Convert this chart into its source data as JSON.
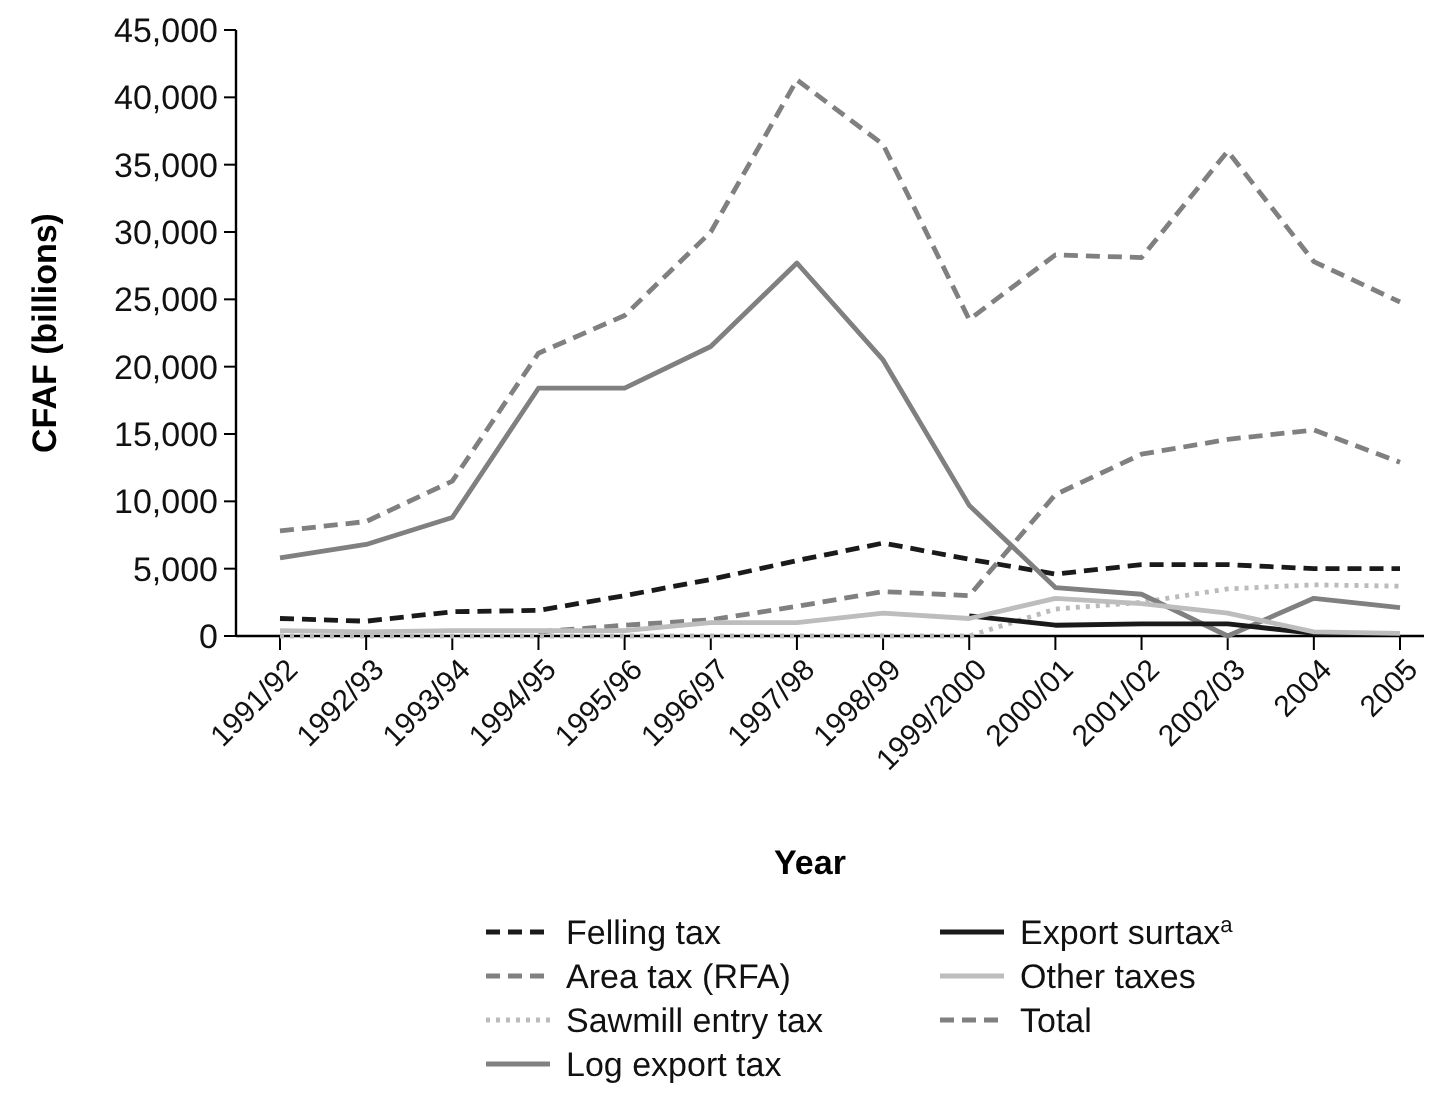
{
  "chart_data": {
    "type": "line",
    "xlabel": "Year",
    "ylabel": "CFAF (billions)",
    "categories": [
      "1991/92",
      "1992/93",
      "1993/94",
      "1994/95",
      "1995/96",
      "1996/97",
      "1997/98",
      "1998/99",
      "1999/2000",
      "2000/01",
      "2001/02",
      "2002/03",
      "2004",
      "2005"
    ],
    "ylim": [
      0,
      45000
    ],
    "yticks": [
      {
        "value": 0,
        "label": "0"
      },
      {
        "value": 5000,
        "label": "5,000"
      },
      {
        "value": 10000,
        "label": "10,000"
      },
      {
        "value": 15000,
        "label": "15,000"
      },
      {
        "value": 20000,
        "label": "20,000"
      },
      {
        "value": 25000,
        "label": "25,000"
      },
      {
        "value": 30000,
        "label": "30,000"
      },
      {
        "value": 35000,
        "label": "35,000"
      },
      {
        "value": 40000,
        "label": "40,000"
      },
      {
        "value": 45000,
        "label": "45,000"
      }
    ],
    "grid": false,
    "legend": "bottom",
    "series": [
      {
        "name": "Felling tax",
        "color": "#1a1a1a",
        "line_style": "dashed",
        "values": [
          1300,
          1100,
          1800,
          1900,
          3000,
          4200,
          5600,
          6900,
          5700,
          4600,
          5300,
          5300,
          5000,
          5000
        ]
      },
      {
        "name": "Area tax (RFA)",
        "color": "#808080",
        "line_style": "dashed",
        "values": [
          null,
          null,
          null,
          300,
          800,
          1200,
          2200,
          3300,
          3000,
          10500,
          13500,
          14600,
          15300,
          12900
        ]
      },
      {
        "name": "Sawmill entry tax",
        "color": "#bbbbbb",
        "line_style": "dotted",
        "values": [
          0,
          0,
          0,
          0,
          0,
          0,
          0,
          0,
          0,
          2000,
          2500,
          3500,
          3800,
          3700
        ]
      },
      {
        "name": "Log export tax",
        "color": "#808080",
        "line_style": "solid",
        "values": [
          5800,
          6800,
          8800,
          18400,
          18400,
          21500,
          27700,
          20500,
          9700,
          3600,
          3100,
          0,
          2800,
          2100
        ]
      },
      {
        "name": "Export surtax$^{a}$",
        "color": "#1a1a1a",
        "line_style": "solid",
        "values": [
          null,
          null,
          null,
          null,
          null,
          null,
          null,
          null,
          1500,
          800,
          900,
          900,
          200,
          200
        ]
      },
      {
        "name": "Other taxes",
        "color": "#bdbdbd",
        "line_style": "solid",
        "values": [
          400,
          300,
          400,
          400,
          400,
          1000,
          1000,
          1700,
          1300,
          2800,
          2400,
          1700,
          300,
          200
        ]
      },
      {
        "name": "Total",
        "color": "#808080",
        "line_style": "dashed",
        "values": [
          7800,
          8500,
          11500,
          21000,
          23800,
          30000,
          41300,
          36500,
          23500,
          28300,
          28100,
          36000,
          27800,
          24800
        ]
      }
    ]
  }
}
